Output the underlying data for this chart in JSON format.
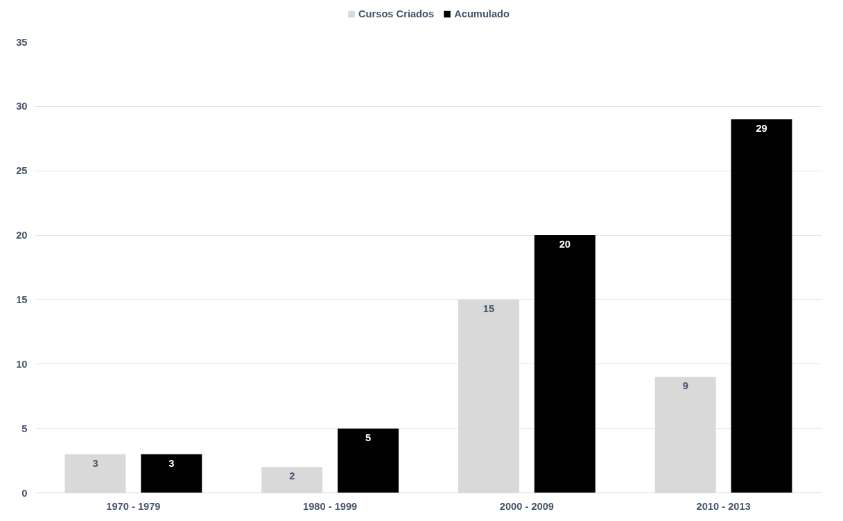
{
  "chart_data": {
    "type": "bar",
    "categories": [
      "1970 - 1979",
      "1980 - 1999",
      "2000 - 2009",
      "2010 - 2013"
    ],
    "series": [
      {
        "name": "Cursos Criados",
        "color": "#d9d9d9",
        "values": [
          3,
          2,
          15,
          9
        ]
      },
      {
        "name": "Acumulado",
        "color": "#000000",
        "values": [
          3,
          5,
          20,
          29
        ]
      }
    ],
    "ylim": [
      0,
      35
    ],
    "yticks": [
      0,
      5,
      10,
      15,
      20,
      25,
      30,
      35
    ],
    "grid": "y",
    "legend": "top",
    "data_labels": true
  }
}
